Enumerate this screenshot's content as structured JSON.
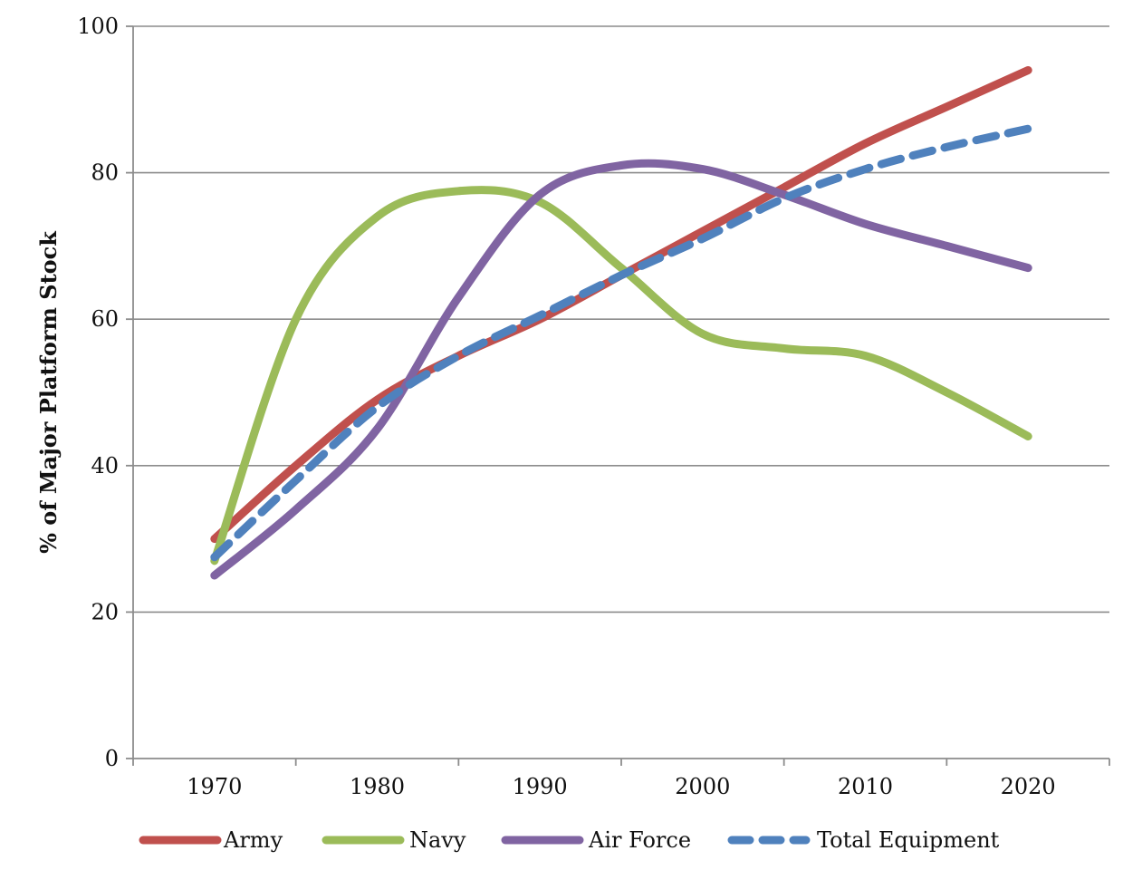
{
  "chart_data": {
    "type": "line",
    "title": "",
    "xlabel": "",
    "ylabel": "% of Major Platform Stock",
    "x": [
      1970,
      1975,
      1980,
      1985,
      1990,
      1995,
      2000,
      2005,
      2010,
      2015,
      2020
    ],
    "x_ticks": [
      "1970",
      "1980",
      "1990",
      "2000",
      "2010",
      "2020"
    ],
    "y_ticks": [
      "0",
      "20",
      "40",
      "60",
      "80",
      "100"
    ],
    "xlim": [
      1965,
      2025
    ],
    "ylim": [
      0,
      100
    ],
    "grid": "horizontal",
    "legend_position": "bottom",
    "series": [
      {
        "name": "Army",
        "color": "#c0504d",
        "dash": "solid",
        "values": [
          30,
          40,
          49,
          55,
          60,
          66,
          72,
          78,
          84,
          89,
          94
        ]
      },
      {
        "name": "Navy",
        "color": "#9bbb59",
        "dash": "solid",
        "values": [
          27,
          60,
          74,
          77.5,
          76,
          67,
          58,
          56,
          55,
          50,
          44
        ]
      },
      {
        "name": "Air Force",
        "color": "#8064a2",
        "dash": "solid",
        "values": [
          25,
          34,
          45,
          63,
          77,
          81,
          80.5,
          77,
          73,
          70,
          67
        ]
      },
      {
        "name": "Total Equipment",
        "color": "#4f81bd",
        "dash": "dashed",
        "values": [
          27.5,
          38,
          48,
          55,
          60.5,
          66,
          71,
          76.5,
          80.5,
          83.5,
          86
        ]
      }
    ]
  }
}
